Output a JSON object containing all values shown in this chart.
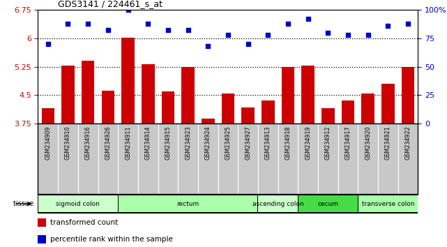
{
  "title": "GDS3141 / 224461_s_at",
  "samples": [
    "GSM234909",
    "GSM234910",
    "GSM234916",
    "GSM234926",
    "GSM234911",
    "GSM234914",
    "GSM234915",
    "GSM234923",
    "GSM234924",
    "GSM234925",
    "GSM234927",
    "GSM234913",
    "GSM234918",
    "GSM234919",
    "GSM234912",
    "GSM234917",
    "GSM234920",
    "GSM234921",
    "GSM234922"
  ],
  "bar_values": [
    4.15,
    5.28,
    5.4,
    4.62,
    6.02,
    5.32,
    4.6,
    5.25,
    3.88,
    4.55,
    4.18,
    4.35,
    5.25,
    5.28,
    4.15,
    4.35,
    4.55,
    4.8,
    5.25
  ],
  "dot_values": [
    70,
    88,
    88,
    82,
    100,
    88,
    82,
    82,
    68,
    78,
    70,
    78,
    88,
    92,
    80,
    78,
    78,
    86,
    88
  ],
  "ylim_left": [
    3.75,
    6.75
  ],
  "ylim_right": [
    0,
    100
  ],
  "yticks_left": [
    3.75,
    4.5,
    5.25,
    6.0,
    6.75
  ],
  "ytick_labels_left": [
    "3.75",
    "4.5",
    "5.25",
    "6",
    "6.75"
  ],
  "yticks_right": [
    0,
    25,
    50,
    75,
    100
  ],
  "ytick_labels_right": [
    "0",
    "25",
    "50",
    "75",
    "100%"
  ],
  "hlines": [
    6.0,
    5.25,
    4.5
  ],
  "bar_color": "#cc0000",
  "dot_color": "#0000cc",
  "tissue_groups": [
    {
      "label": "sigmoid colon",
      "start": 0,
      "end": 4,
      "color": "#ccffcc"
    },
    {
      "label": "rectum",
      "start": 4,
      "end": 11,
      "color": "#aaffaa"
    },
    {
      "label": "ascending colon",
      "start": 11,
      "end": 13,
      "color": "#ccffcc"
    },
    {
      "label": "cecum",
      "start": 13,
      "end": 16,
      "color": "#44dd44"
    },
    {
      "label": "transverse colon",
      "start": 16,
      "end": 19,
      "color": "#aaffaa"
    }
  ],
  "legend_bar_label": "transformed count",
  "legend_dot_label": "percentile rank within the sample",
  "sample_bg": "#c8c8c8",
  "sample_border": "#999999"
}
